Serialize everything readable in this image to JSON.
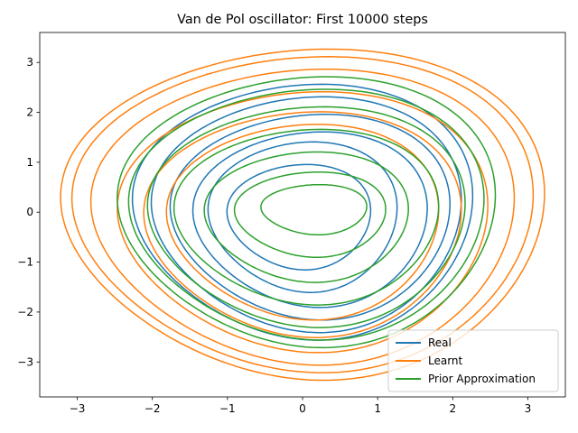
{
  "chart_data": {
    "type": "line",
    "title": "Van de Pol oscillator: First 10000 steps",
    "xlabel": "",
    "ylabel": "",
    "xlim": [
      -3.5,
      3.5
    ],
    "ylim": [
      -3.7,
      3.6
    ],
    "xticks": [
      -3,
      -2,
      -1,
      0,
      1,
      2,
      3
    ],
    "xtick_labels": [
      "−3",
      "−2",
      "−1",
      "0",
      "1",
      "2",
      "3"
    ],
    "yticks": [
      -3,
      -2,
      -1,
      0,
      1,
      2,
      3
    ],
    "ytick_labels": [
      "−3",
      "−2",
      "−1",
      "0",
      "1",
      "2",
      "3"
    ],
    "grid": false,
    "legend_position": "lower-right",
    "series": [
      {
        "name": "Real",
        "color": "#1f77b4",
        "orbits": [
          {
            "cx": -0.05,
            "cy": -0.1,
            "rx": 0.95,
            "ry": 1.05
          },
          {
            "cx": 0.0,
            "cy": -0.1,
            "rx": 1.25,
            "ry": 1.5
          },
          {
            "cx": 0.1,
            "cy": -0.15,
            "rx": 1.55,
            "ry": 1.75
          },
          {
            "cx": 0.1,
            "cy": -0.1,
            "rx": 1.85,
            "ry": 2.05
          },
          {
            "cx": 0.05,
            "cy": -0.05,
            "rx": 2.05,
            "ry": 2.35
          },
          {
            "cx": 0.0,
            "cy": 0.0,
            "rx": 2.25,
            "ry": 2.55
          }
        ]
      },
      {
        "name": "Learnt",
        "color": "#ff7f0e",
        "orbits": [
          {
            "cx": 0.0,
            "cy": -0.2,
            "rx": 1.8,
            "ry": 1.95
          },
          {
            "cx": 0.0,
            "cy": -0.25,
            "rx": 2.1,
            "ry": 2.25
          },
          {
            "cx": 0.0,
            "cy": -0.2,
            "rx": 2.45,
            "ry": 2.6
          },
          {
            "cx": 0.0,
            "cy": -0.1,
            "rx": 2.8,
            "ry": 2.95
          },
          {
            "cx": 0.0,
            "cy": -0.05,
            "rx": 3.05,
            "ry": 3.15
          },
          {
            "cx": 0.0,
            "cy": -0.05,
            "rx": 3.2,
            "ry": 3.3
          }
        ]
      },
      {
        "name": "Prior Approximation",
        "color": "#2ca02c",
        "orbits": [
          {
            "cx": 0.15,
            "cy": 0.05,
            "rx": 0.7,
            "ry": 0.5
          },
          {
            "cx": 0.1,
            "cy": -0.05,
            "rx": 1.0,
            "ry": 0.85
          },
          {
            "cx": 0.05,
            "cy": -0.1,
            "rx": 1.35,
            "ry": 1.3
          },
          {
            "cx": 0.05,
            "cy": -0.1,
            "rx": 1.75,
            "ry": 1.75
          },
          {
            "cx": 0.05,
            "cy": -0.1,
            "rx": 2.1,
            "ry": 2.2
          },
          {
            "cx": 0.05,
            "cy": -0.05,
            "rx": 2.35,
            "ry": 2.5
          },
          {
            "cx": 0.05,
            "cy": 0.0,
            "rx": 2.5,
            "ry": 2.7
          }
        ]
      }
    ]
  }
}
